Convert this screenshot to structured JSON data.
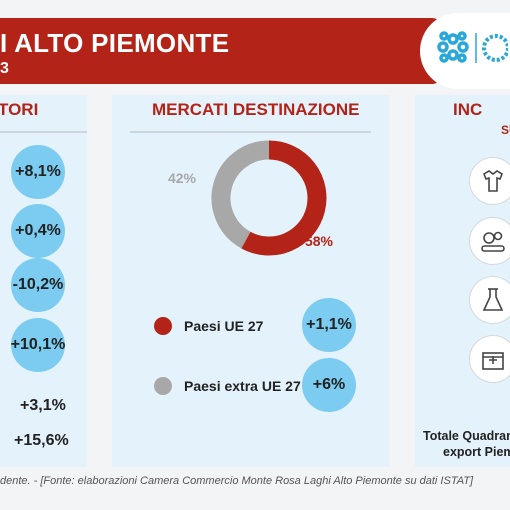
{
  "header": {
    "title": "I ALTO PIEMONTE",
    "subtitle": "3"
  },
  "settori": {
    "heading": "TORI",
    "values": [
      "+8,1%",
      "+0,4%",
      "-10,2%",
      "+10,1%",
      "+3,1%",
      "+15,6%"
    ]
  },
  "mercati": {
    "heading": "MERCATI DESTINAZIONE",
    "legend": [
      {
        "label": "Paesi UE 27",
        "color": "#b32318",
        "change": "+1,1%"
      },
      {
        "label": "Paesi extra UE 27",
        "color": "#a8a8a8",
        "change": "+6%"
      }
    ]
  },
  "chart_data": {
    "type": "pie",
    "labels": [
      "Paesi UE 27",
      "Paesi extra UE 27"
    ],
    "values": [
      58,
      42
    ],
    "value_labels": [
      "58%",
      "42%"
    ],
    "colors": [
      "#b32318",
      "#a8a8a8"
    ]
  },
  "incidenza": {
    "heading": "INC",
    "subheading": "SU",
    "icons": [
      "clothing-icon",
      "gears-conveyor-icon",
      "lab-flask-icon",
      "pharmacy-icon"
    ],
    "footer_line1": "Totale Quadrant",
    "footer_line2": "export Piemo"
  },
  "source": "dente. - [Fonte: elaborazioni Camera Commercio Monte Rosa Laghi Alto Piemonte su dati ISTAT]"
}
